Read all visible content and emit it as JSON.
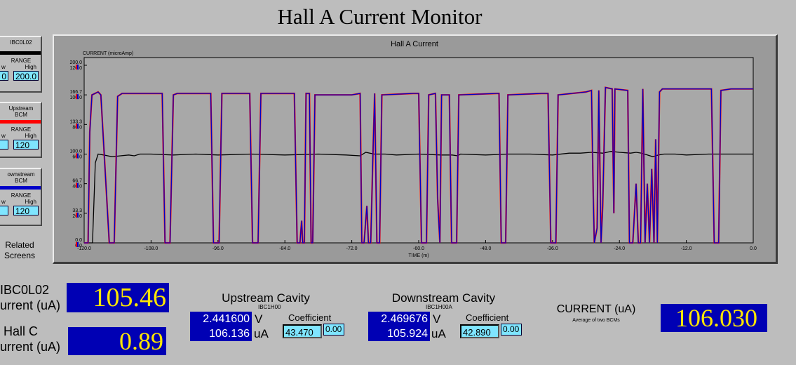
{
  "page_title": "Hall A Current Monitor",
  "legend_boxes": [
    {
      "name": "IBC0L02",
      "color": "#000000",
      "range_label": "RANGE",
      "low_label": "w",
      "high_label": "High",
      "low_value": "0",
      "high_value": "200.0"
    },
    {
      "name_line1": "Upstream",
      "name_line2": "BCM",
      "color": "#ff0000",
      "range_label": "RANGE",
      "low_label": "w",
      "high_label": "High",
      "low_value": "",
      "high_value": "120"
    },
    {
      "name_line1": "ownstream",
      "name_line2": "BCM",
      "color": "#0000c8",
      "range_label": "RANGE",
      "low_label": "w",
      "high_label": "High",
      "low_value": "",
      "high_value": "120"
    }
  ],
  "related_screens": {
    "line1": "Related",
    "line2": "Screens"
  },
  "ibc0l02": {
    "label_line1": "IBC0L02",
    "label_line2": "urrent (uA)",
    "value": "105.46"
  },
  "hallc": {
    "label_line1": "Hall C",
    "label_line2": "urrent (uA)",
    "value": "0.89"
  },
  "upstream": {
    "title": "Upstream Cavity",
    "pv": "IBC1H00",
    "volts": "2.441600",
    "volts_unit": "V",
    "current": "106.136",
    "current_unit": "uA",
    "coef_label": "Coefficient",
    "coef": "43.470",
    "offset": "0.00"
  },
  "downstream": {
    "title": "Downstream Cavity",
    "pv": "IBC1H00A",
    "volts": "2.469676",
    "volts_unit": "V",
    "current": "105.924",
    "current_unit": "uA",
    "coef_label": "Coefficient",
    "coef": "42.890",
    "offset": "0.00"
  },
  "current_avg": {
    "label": "CURRENT (uA)",
    "sublabel": "Average of two BCMs",
    "value": "106.030"
  },
  "chart_data": {
    "type": "line",
    "title": "Hall A Current",
    "ylabel": "CURRENT (microAmp)",
    "xlabel": "TIME (m)",
    "xlim": [
      -120,
      0
    ],
    "x_ticks": [
      "-120.0",
      "-108.0",
      "-96.0",
      "-84.0",
      "-72.0",
      "-60.0",
      "-48.0",
      "-36.0",
      "-24.0",
      "-12.0",
      "0.0"
    ],
    "y_ticks_black": [
      "0.0",
      "33.3",
      "66.7",
      "100.0",
      "133.3",
      "166.7",
      "200.0"
    ],
    "y_ticks_color": [
      "0.0",
      "20.0",
      "40.0",
      "60.0",
      "80.0",
      "100.0",
      "120.0"
    ],
    "ylim_black": [
      0,
      200
    ],
    "ylim_color": [
      0,
      120
    ],
    "grid": false,
    "series": [
      {
        "color": "#000000",
        "scale": "black",
        "points": [
          [
            -120,
            0
          ],
          [
            -118.5,
            0
          ],
          [
            -118,
            90
          ],
          [
            -117.5,
            100
          ],
          [
            -116.5,
            99
          ],
          [
            -115,
            97
          ],
          [
            -113.5,
            98
          ],
          [
            -112,
            99
          ],
          [
            -111,
            98
          ],
          [
            -110,
            100
          ],
          [
            -108,
            100
          ],
          [
            -104,
            99
          ],
          [
            -100,
            100
          ],
          [
            -96,
            99
          ],
          [
            -90,
            100
          ],
          [
            -84,
            99
          ],
          [
            -78,
            100
          ],
          [
            -73,
            99
          ],
          [
            -70.5,
            98
          ],
          [
            -69.5,
            102
          ],
          [
            -68,
            100
          ],
          [
            -66,
            100
          ],
          [
            -64,
            99
          ],
          [
            -60,
            100
          ],
          [
            -56,
            99
          ],
          [
            -54,
            99
          ],
          [
            -53,
            98
          ],
          [
            -52.5,
            100
          ],
          [
            -48,
            99
          ],
          [
            -44,
            100
          ],
          [
            -40,
            100
          ],
          [
            -36,
            99
          ],
          [
            -33,
            101
          ],
          [
            -31,
            101
          ],
          [
            -29,
            102
          ],
          [
            -27,
            101
          ],
          [
            -25.5,
            103
          ],
          [
            -24,
            102
          ],
          [
            -22,
            101
          ],
          [
            -21,
            102
          ],
          [
            -20,
            101
          ],
          [
            -19,
            99
          ],
          [
            -18,
            97
          ],
          [
            -17,
            99
          ],
          [
            -16,
            100
          ],
          [
            -14,
            100
          ],
          [
            -12,
            99
          ],
          [
            -8,
            100
          ],
          [
            -4,
            100
          ],
          [
            0,
            100
          ]
        ]
      },
      {
        "color": "#ff0000",
        "scale": "color",
        "points": [
          [
            -120,
            0
          ],
          [
            -119.3,
            0
          ],
          [
            -119,
            75
          ],
          [
            -118.6,
            100
          ],
          [
            -117.5,
            102
          ],
          [
            -117,
            100
          ],
          [
            -115.5,
            0
          ],
          [
            -114.6,
            0
          ],
          [
            -114,
            99
          ],
          [
            -113.2,
            101
          ],
          [
            -108,
            101
          ],
          [
            -106,
            101
          ],
          [
            -105.5,
            0
          ],
          [
            -104.6,
            0
          ],
          [
            -104,
            100
          ],
          [
            -103.3,
            101
          ],
          [
            -98,
            101
          ],
          [
            -97.3,
            101
          ],
          [
            -96.8,
            0
          ],
          [
            -95.8,
            0
          ],
          [
            -95.3,
            101
          ],
          [
            -91,
            101
          ],
          [
            -90.3,
            101
          ],
          [
            -89.8,
            0
          ],
          [
            -88.8,
            0
          ],
          [
            -88.3,
            101
          ],
          [
            -83,
            101
          ],
          [
            -82.3,
            101
          ],
          [
            -81.8,
            0
          ],
          [
            -81.3,
            0
          ],
          [
            -81,
            15
          ],
          [
            -80.8,
            0
          ],
          [
            -80.5,
            0
          ],
          [
            -80.2,
            101
          ],
          [
            -79.6,
            101
          ],
          [
            -79.3,
            0
          ],
          [
            -79,
            0
          ],
          [
            -78.6,
            100
          ],
          [
            -72,
            100
          ],
          [
            -70.5,
            101
          ],
          [
            -70.2,
            0
          ],
          [
            -69.8,
            0
          ],
          [
            -69.3,
            25
          ],
          [
            -69,
            0
          ],
          [
            -68.6,
            0
          ],
          [
            -68.2,
            60
          ],
          [
            -67.9,
            101
          ],
          [
            -67.5,
            0
          ],
          [
            -67,
            0
          ],
          [
            -66.6,
            100
          ],
          [
            -61,
            101
          ],
          [
            -60,
            101
          ],
          [
            -59.5,
            0
          ],
          [
            -58.6,
            0
          ],
          [
            -58.2,
            100
          ],
          [
            -57,
            101
          ],
          [
            -56.6,
            30
          ],
          [
            -56.2,
            0
          ],
          [
            -55.9,
            100
          ],
          [
            -54.5,
            100
          ],
          [
            -54.1,
            0
          ],
          [
            -53.2,
            0
          ],
          [
            -52.8,
            100
          ],
          [
            -46,
            101
          ],
          [
            -45.6,
            101
          ],
          [
            -45.2,
            0
          ],
          [
            -44.4,
            0
          ],
          [
            -44,
            100
          ],
          [
            -38,
            101
          ],
          [
            -36.8,
            101
          ],
          [
            -36.3,
            0
          ],
          [
            -35.4,
            0
          ],
          [
            -35,
            100
          ],
          [
            -30,
            102
          ],
          [
            -29,
            103
          ],
          [
            -28.7,
            35
          ],
          [
            -28.5,
            0
          ],
          [
            -28,
            10
          ],
          [
            -27.7,
            103
          ],
          [
            -27.3,
            0
          ],
          [
            -27,
            25
          ],
          [
            -26.5,
            105
          ],
          [
            -25.3,
            104
          ],
          [
            -25,
            20
          ],
          [
            -24.8,
            104
          ],
          [
            -22.5,
            103
          ],
          [
            -22.2,
            0
          ],
          [
            -21.6,
            0
          ],
          [
            -21,
            40
          ],
          [
            -20.6,
            0
          ],
          [
            -20.2,
            0
          ],
          [
            -19.8,
            104
          ],
          [
            -19.4,
            0
          ],
          [
            -19,
            40
          ],
          [
            -18.6,
            0
          ],
          [
            -18.2,
            50
          ],
          [
            -17.8,
            0
          ],
          [
            -17.5,
            70
          ],
          [
            -17.2,
            0
          ],
          [
            -16.8,
            102
          ],
          [
            -16.3,
            104
          ],
          [
            -12,
            104
          ],
          [
            -7.5,
            104
          ],
          [
            -7,
            0
          ],
          [
            -6.2,
            0
          ],
          [
            -5.8,
            103
          ],
          [
            -4,
            104
          ],
          [
            0,
            104
          ]
        ]
      },
      {
        "color": "#0000c8",
        "scale": "color",
        "points": [
          [
            -120,
            0
          ],
          [
            -119.3,
            0
          ],
          [
            -119,
            75
          ],
          [
            -118.6,
            100
          ],
          [
            -117.5,
            102
          ],
          [
            -117,
            100
          ],
          [
            -115.5,
            0
          ],
          [
            -114.6,
            0
          ],
          [
            -114,
            99
          ],
          [
            -113.2,
            101
          ],
          [
            -108,
            101
          ],
          [
            -106,
            101
          ],
          [
            -105.5,
            0
          ],
          [
            -104.6,
            0
          ],
          [
            -104,
            100
          ],
          [
            -103.3,
            101
          ],
          [
            -98,
            101
          ],
          [
            -97.3,
            101
          ],
          [
            -96.8,
            0
          ],
          [
            -95.8,
            0
          ],
          [
            -95.3,
            101
          ],
          [
            -91,
            101
          ],
          [
            -90.3,
            101
          ],
          [
            -89.8,
            0
          ],
          [
            -88.8,
            0
          ],
          [
            -88.3,
            101
          ],
          [
            -83,
            101
          ],
          [
            -82.3,
            101
          ],
          [
            -81.8,
            0
          ],
          [
            -81.3,
            0
          ],
          [
            -81,
            15
          ],
          [
            -80.8,
            0
          ],
          [
            -80.5,
            0
          ],
          [
            -80.2,
            101
          ],
          [
            -79.6,
            101
          ],
          [
            -79.3,
            0
          ],
          [
            -79,
            0
          ],
          [
            -78.6,
            100
          ],
          [
            -72,
            100
          ],
          [
            -70.5,
            101
          ],
          [
            -70.2,
            0
          ],
          [
            -69.8,
            0
          ],
          [
            -69.3,
            25
          ],
          [
            -69,
            0
          ],
          [
            -68.6,
            0
          ],
          [
            -68.2,
            60
          ],
          [
            -67.9,
            101
          ],
          [
            -67.5,
            0
          ],
          [
            -67,
            0
          ],
          [
            -66.6,
            100
          ],
          [
            -61,
            101
          ],
          [
            -60,
            101
          ],
          [
            -59.5,
            0
          ],
          [
            -58.6,
            0
          ],
          [
            -58.2,
            100
          ],
          [
            -57,
            101
          ],
          [
            -56.6,
            30
          ],
          [
            -56.2,
            0
          ],
          [
            -55.9,
            100
          ],
          [
            -54.5,
            100
          ],
          [
            -54.1,
            0
          ],
          [
            -53.2,
            0
          ],
          [
            -52.8,
            100
          ],
          [
            -46,
            101
          ],
          [
            -45.6,
            101
          ],
          [
            -45.2,
            0
          ],
          [
            -44.4,
            0
          ],
          [
            -44,
            100
          ],
          [
            -38,
            101
          ],
          [
            -36.8,
            101
          ],
          [
            -36.3,
            0
          ],
          [
            -35.4,
            0
          ],
          [
            -35,
            100
          ],
          [
            -30,
            102
          ],
          [
            -29,
            103
          ],
          [
            -28.7,
            35
          ],
          [
            -28.5,
            0
          ],
          [
            -28,
            10
          ],
          [
            -27.7,
            103
          ],
          [
            -27.3,
            0
          ],
          [
            -27,
            25
          ],
          [
            -26.5,
            105
          ],
          [
            -25.3,
            104
          ],
          [
            -25,
            20
          ],
          [
            -24.8,
            104
          ],
          [
            -22.5,
            103
          ],
          [
            -22.2,
            0
          ],
          [
            -21.6,
            0
          ],
          [
            -21,
            40
          ],
          [
            -20.6,
            0
          ],
          [
            -20.2,
            0
          ],
          [
            -19.8,
            104
          ],
          [
            -19.4,
            0
          ],
          [
            -19,
            40
          ],
          [
            -18.6,
            0
          ],
          [
            -18.2,
            50
          ],
          [
            -17.8,
            0
          ],
          [
            -17.5,
            70
          ],
          [
            -17.2,
            0
          ],
          [
            -16.8,
            102
          ],
          [
            -16.3,
            104
          ],
          [
            -12,
            104
          ],
          [
            -7.5,
            104
          ],
          [
            -7,
            0
          ],
          [
            -6.2,
            0
          ],
          [
            -5.8,
            103
          ],
          [
            -4,
            104
          ],
          [
            0,
            104
          ]
        ]
      }
    ]
  }
}
